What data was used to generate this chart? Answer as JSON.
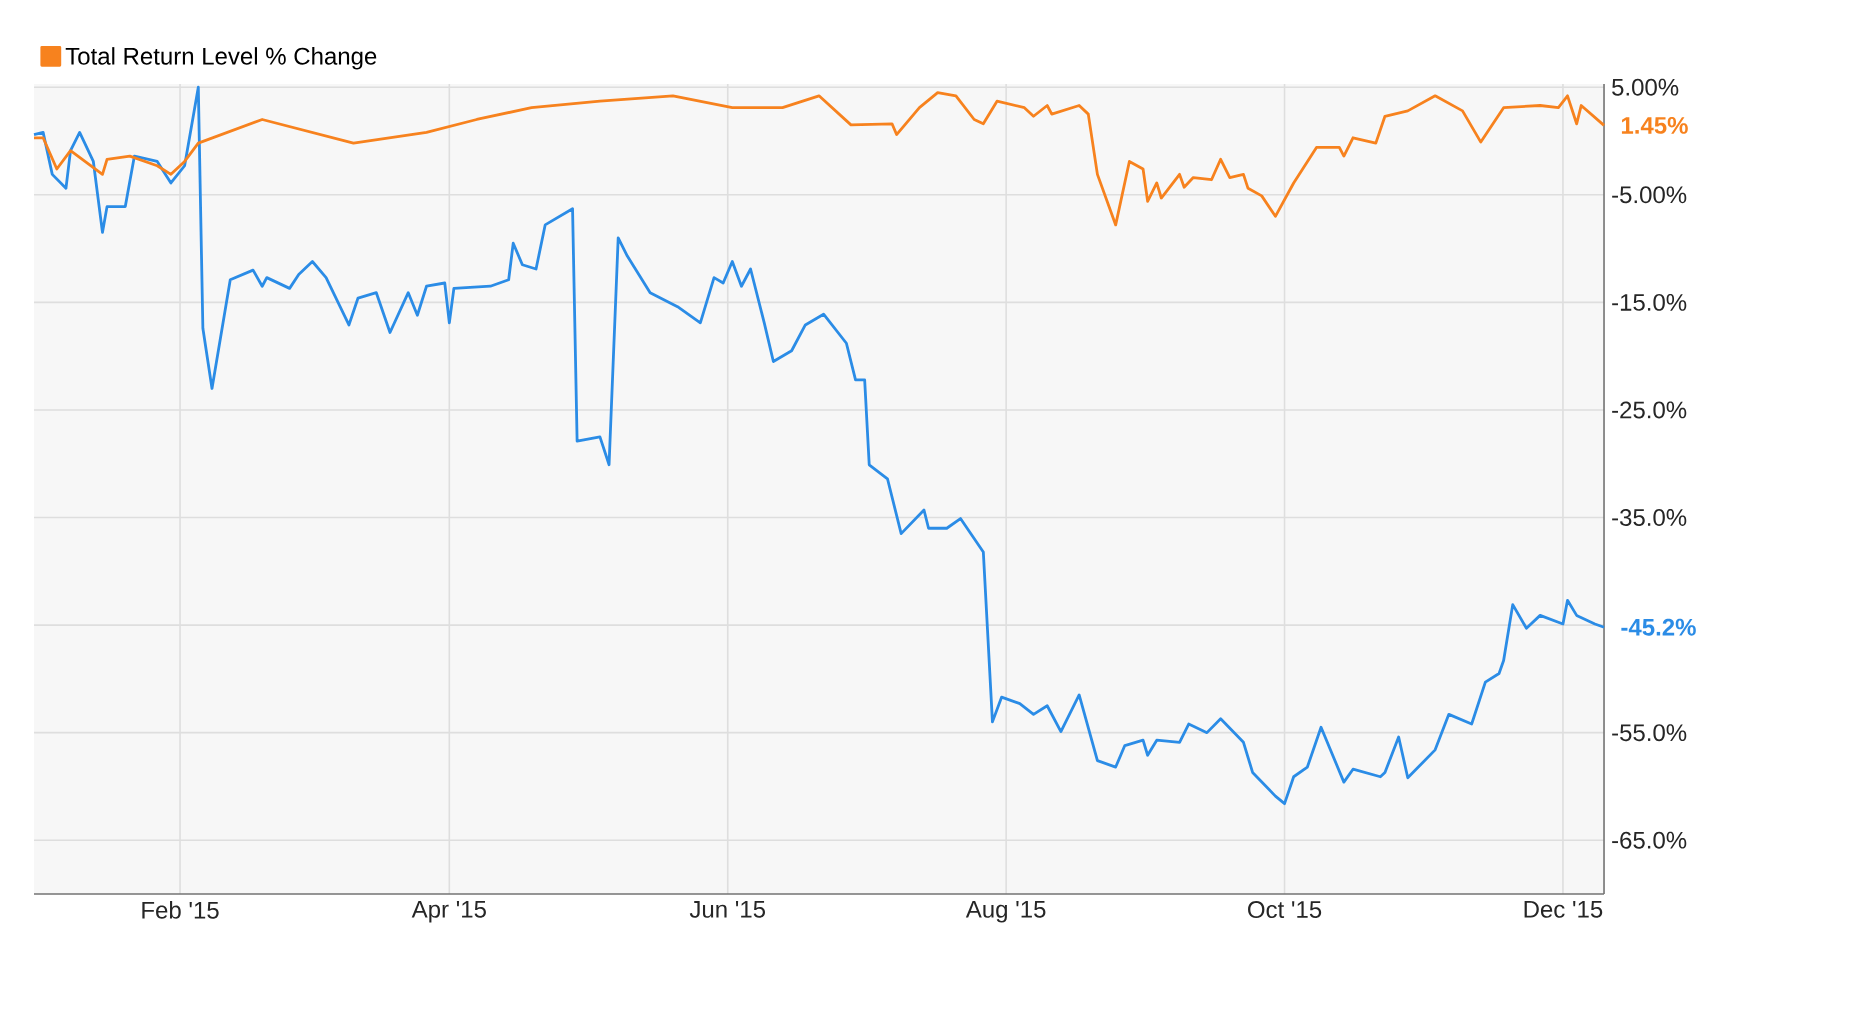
{
  "chart_data": {
    "type": "line",
    "xlim": [
      "2014-12-31",
      "2015-12-10"
    ],
    "xticks": [
      {
        "value": "2015-02-01",
        "label": "Feb '15"
      },
      {
        "value": "2015-04-01",
        "label": "Apr '15"
      },
      {
        "value": "2015-06-01",
        "label": "Jun '15"
      },
      {
        "value": "2015-08-01",
        "label": "Aug '15"
      },
      {
        "value": "2015-10-01",
        "label": "Oct '15"
      },
      {
        "value": "2015-12-01",
        "label": "Dec '15"
      }
    ],
    "ylim": [
      -70,
      5.3
    ],
    "yticks": [
      {
        "value": 5,
        "label": "5.00%"
      },
      {
        "value": -5,
        "label": "-5.00%"
      },
      {
        "value": -15,
        "label": "-15.0%"
      },
      {
        "value": -25,
        "label": "-25.0%"
      },
      {
        "value": -35,
        "label": "-35.0%"
      },
      {
        "value": -45,
        "label": null
      },
      {
        "value": -55,
        "label": "-55.0%"
      },
      {
        "value": -65,
        "label": "-65.0%"
      }
    ],
    "grid": true,
    "legend": "top left",
    "marker": "none",
    "line_style": "solid",
    "series": [
      {
        "color": "#2b8ce6",
        "x": [
          "2014-12-31",
          "2015-01-02",
          "2015-01-04",
          "2015-01-07",
          "2015-01-08",
          "2015-01-10",
          "2015-01-13",
          "2015-01-15",
          "2015-01-16",
          "2015-01-20",
          "2015-01-22",
          "2015-01-27",
          "2015-01-30",
          "2015-02-02",
          "2015-02-05",
          "2015-02-06",
          "2015-02-08",
          "2015-02-12",
          "2015-02-17",
          "2015-02-19",
          "2015-02-20",
          "2015-02-25",
          "2015-02-27",
          "2015-03-02",
          "2015-03-05",
          "2015-03-10",
          "2015-03-12",
          "2015-03-16",
          "2015-03-19",
          "2015-03-23",
          "2015-03-25",
          "2015-03-27",
          "2015-03-31",
          "2015-04-01",
          "2015-04-02",
          "2015-04-10",
          "2015-04-14",
          "2015-04-15",
          "2015-04-17",
          "2015-04-20",
          "2015-04-22",
          "2015-04-28",
          "2015-04-29",
          "2015-05-04",
          "2015-05-06",
          "2015-05-08",
          "2015-05-10",
          "2015-05-15",
          "2015-05-21",
          "2015-05-26",
          "2015-05-29",
          "2015-05-31",
          "2015-06-02",
          "2015-06-04",
          "2015-06-06",
          "2015-06-09",
          "2015-06-11",
          "2015-06-15",
          "2015-06-18",
          "2015-06-22",
          "2015-06-27",
          "2015-06-29",
          "2015-07-01",
          "2015-07-02",
          "2015-07-06",
          "2015-07-09",
          "2015-07-14",
          "2015-07-15",
          "2015-07-19",
          "2015-07-22",
          "2015-07-27",
          "2015-07-29",
          "2015-07-31",
          "2015-08-04",
          "2015-08-07",
          "2015-08-10",
          "2015-08-13",
          "2015-08-17",
          "2015-08-21",
          "2015-08-25",
          "2015-08-27",
          "2015-08-31",
          "2015-09-01",
          "2015-09-03",
          "2015-09-08",
          "2015-09-10",
          "2015-09-14",
          "2015-09-17",
          "2015-09-22",
          "2015-09-24",
          "2015-09-29",
          "2015-10-01",
          "2015-10-03",
          "2015-10-06",
          "2015-10-09",
          "2015-10-14",
          "2015-10-16",
          "2015-10-22",
          "2015-10-23",
          "2015-10-26",
          "2015-10-28",
          "2015-11-03",
          "2015-11-06",
          "2015-11-11",
          "2015-11-14",
          "2015-11-17",
          "2015-11-18",
          "2015-11-20",
          "2015-11-23",
          "2015-11-26",
          "2015-12-01",
          "2015-12-02",
          "2015-12-04",
          "2015-12-08",
          "2015-12-10"
        ],
        "values": [
          0.6,
          0.8,
          -3.1,
          -4.4,
          -0.9,
          0.8,
          -1.9,
          -8.5,
          -6.1,
          -6.1,
          -1.4,
          -1.9,
          -3.9,
          -2.3,
          5.0,
          -17.4,
          -23.0,
          -12.9,
          -12.0,
          -13.5,
          -12.7,
          -13.7,
          -12.4,
          -11.2,
          -12.7,
          -17.1,
          -14.6,
          -14.1,
          -17.8,
          -14.1,
          -16.2,
          -13.5,
          -13.2,
          -16.9,
          -13.7,
          -13.5,
          -12.9,
          -9.5,
          -11.5,
          -11.9,
          -7.8,
          -6.3,
          -27.9,
          -27.5,
          -30.1,
          -9.0,
          -10.7,
          -14.1,
          -15.4,
          -16.9,
          -12.7,
          -13.2,
          -11.2,
          -13.5,
          -11.9,
          -16.9,
          -20.5,
          -19.5,
          -17.1,
          -16.1,
          -18.8,
          -22.2,
          -22.2,
          -30.1,
          -31.4,
          -36.5,
          -34.3,
          -36.0,
          -36.0,
          -35.1,
          -38.2,
          -54.0,
          -51.7,
          -52.3,
          -53.3,
          -52.5,
          -54.9,
          -51.5,
          -57.6,
          -58.2,
          -56.2,
          -55.7,
          -57.1,
          -55.7,
          -55.9,
          -54.2,
          -55.0,
          -53.7,
          -55.9,
          -58.7,
          -60.9,
          -61.6,
          -59.1,
          -58.2,
          -54.5,
          -59.6,
          -58.4,
          -59.1,
          -58.7,
          -55.4,
          -59.2,
          -56.6,
          -53.3,
          -54.2,
          -50.3,
          -49.5,
          -48.3,
          -43.1,
          -45.3,
          -44.1,
          -44.9,
          -42.7,
          -44.1,
          -44.9,
          -45.2
        ]
      },
      {
        "name": "Total Return Level % Change",
        "color": "#f7821e",
        "x": [
          "2014-12-31",
          "2015-01-02",
          "2015-01-05",
          "2015-01-08",
          "2015-01-15",
          "2015-01-16",
          "2015-01-21",
          "2015-01-27",
          "2015-01-30",
          "2015-02-02",
          "2015-02-05",
          "2015-02-19",
          "2015-03-11",
          "2015-03-27",
          "2015-04-07",
          "2015-04-19",
          "2015-05-04",
          "2015-05-20",
          "2015-06-02",
          "2015-06-13",
          "2015-06-21",
          "2015-06-28",
          "2015-07-07",
          "2015-07-08",
          "2015-07-13",
          "2015-07-17",
          "2015-07-21",
          "2015-07-25",
          "2015-07-27",
          "2015-07-30",
          "2015-08-05",
          "2015-08-07",
          "2015-08-10",
          "2015-08-11",
          "2015-08-17",
          "2015-08-19",
          "2015-08-21",
          "2015-08-25",
          "2015-08-28",
          "2015-08-31",
          "2015-09-01",
          "2015-09-03",
          "2015-09-04",
          "2015-09-08",
          "2015-09-09",
          "2015-09-11",
          "2015-09-15",
          "2015-09-17",
          "2015-09-19",
          "2015-09-22",
          "2015-09-23",
          "2015-09-26",
          "2015-09-29",
          "2015-10-03",
          "2015-10-08",
          "2015-10-13",
          "2015-10-14",
          "2015-10-16",
          "2015-10-21",
          "2015-10-23",
          "2015-10-28",
          "2015-11-03",
          "2015-11-09",
          "2015-11-13",
          "2015-11-18",
          "2015-11-26",
          "2015-11-30",
          "2015-12-02",
          "2015-12-04",
          "2015-12-05",
          "2015-12-10"
        ],
        "values": [
          0.3,
          0.3,
          -2.6,
          -0.9,
          -3.1,
          -1.7,
          -1.4,
          -2.3,
          -3.1,
          -1.9,
          -0.2,
          2.0,
          -0.2,
          0.8,
          2.0,
          3.1,
          3.7,
          4.2,
          3.1,
          3.1,
          4.2,
          1.5,
          1.6,
          0.6,
          3.1,
          4.5,
          4.2,
          2.0,
          1.6,
          3.7,
          3.1,
          2.3,
          3.3,
          2.5,
          3.3,
          2.5,
          -3.1,
          -7.8,
          -1.9,
          -2.6,
          -5.6,
          -3.9,
          -5.3,
          -3.1,
          -4.3,
          -3.4,
          -3.6,
          -1.7,
          -3.4,
          -3.1,
          -4.4,
          -5.1,
          -7.0,
          -3.9,
          -0.6,
          -0.6,
          -1.4,
          0.3,
          -0.2,
          2.3,
          2.8,
          4.2,
          2.8,
          -0.1,
          3.1,
          3.3,
          3.1,
          4.2,
          1.6,
          3.3,
          1.45
        ]
      }
    ],
    "annotations": [
      {
        "text": "1.45%",
        "x": "2015-12-10",
        "y": 1.45
      },
      {
        "text": "-45.2%",
        "x": "2015-12-10",
        "y": -45.2
      }
    ]
  }
}
